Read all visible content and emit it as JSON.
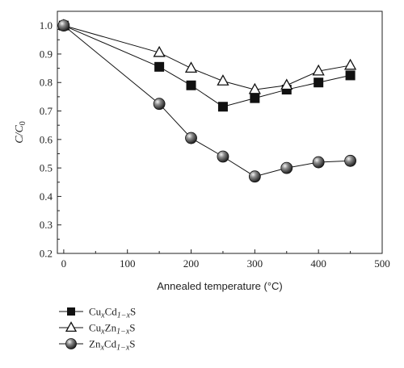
{
  "chart_data": {
    "type": "line",
    "xlabel": "Annealed temperature (°C)",
    "ylabel": "C/C",
    "ylabel_sub": "0",
    "xlim": [
      -10,
      500
    ],
    "ylim": [
      0.2,
      1.05
    ],
    "xticks": [
      0,
      100,
      200,
      300,
      400,
      500
    ],
    "yticks": [
      0.2,
      0.3,
      0.4,
      0.5,
      0.6,
      0.7,
      0.8,
      0.9,
      1.0
    ],
    "xtick_labels": [
      "0",
      "100",
      "200",
      "300",
      "400",
      "500"
    ],
    "ytick_labels": [
      "0.2",
      "0.3",
      "0.4",
      "0.5",
      "0.6",
      "0.7",
      "0.8",
      "0.9",
      "1.0"
    ],
    "grid": false,
    "legend_position": "below-left",
    "series": [
      {
        "name": "CuxCd1−xS",
        "marker": "square",
        "legend": {
          "base1": "Cu",
          "sub1": "x",
          "base2": "Cd",
          "sub2": "1−x",
          "tail": "S"
        },
        "x": [
          0,
          150,
          200,
          250,
          300,
          350,
          400,
          450
        ],
        "y": [
          1.0,
          0.855,
          0.79,
          0.715,
          0.745,
          0.775,
          0.8,
          0.825
        ]
      },
      {
        "name": "CuxZn1−xS",
        "marker": "triangle",
        "legend": {
          "base1": "Cu",
          "sub1": "x",
          "base2": "Zn",
          "sub2": "1−x",
          "tail": "S"
        },
        "x": [
          0,
          150,
          200,
          250,
          300,
          350,
          400,
          450
        ],
        "y": [
          1.0,
          0.905,
          0.85,
          0.805,
          0.775,
          0.79,
          0.84,
          0.86
        ]
      },
      {
        "name": "ZnxCd1−xS",
        "marker": "circle",
        "legend": {
          "base1": "Zn",
          "sub1": "x",
          "base2": "Cd",
          "sub2": "1−x",
          "tail": "S"
        },
        "x": [
          0,
          150,
          200,
          250,
          300,
          350,
          400,
          450
        ],
        "y": [
          1.0,
          0.725,
          0.605,
          0.54,
          0.47,
          0.5,
          0.52,
          0.525
        ]
      }
    ]
  }
}
